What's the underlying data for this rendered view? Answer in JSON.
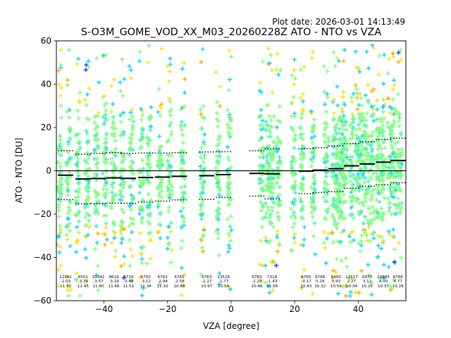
{
  "chart_data": {
    "type": "scatter",
    "plot_date": "Plot date: 2026-03-01 14:13:49",
    "title": "S-O3M_GOME_VOD_XX_M03_20260228Z ATO - NTO vs VZA",
    "xlabel": "VZA [degree]",
    "ylabel": "ATO - NTO [DU]",
    "xlim": [
      -55,
      55
    ],
    "ylim": [
      -60,
      60
    ],
    "xticks": [
      -40,
      -20,
      0,
      20,
      40
    ],
    "xtick_labels": [
      "−40",
      "−20",
      "0",
      "20",
      "40"
    ],
    "yticks": [
      -60,
      -40,
      -20,
      0,
      20,
      40,
      60
    ],
    "ytick_labels": [
      "−60",
      "−40",
      "−20",
      "0",
      "20",
      "40",
      "60"
    ],
    "zero_line": 0,
    "point_colors": {
      "dense": "#80ff7a",
      "mid1": "#45f0c8",
      "mid2": "#18d8f5",
      "outer": "#ffe21a",
      "far": "#ffb300",
      "rare": "#1a4dff"
    },
    "bins": [
      {
        "x": -52.1,
        "n": "12392",
        "mean": "-2.03",
        "std": "11.32",
        "bmean": -2.03,
        "bstd": 11.32
      },
      {
        "x": -46.6,
        "n": "6551",
        "mean": "-3.79",
        "std": "11.45",
        "bmean": -3.79,
        "bstd": 11.45
      },
      {
        "x": -41.8,
        "n": "10341",
        "mean": "-3.57",
        "std": "11.60",
        "bmean": -3.57,
        "bstd": 11.6
      },
      {
        "x": -36.9,
        "n": "9619",
        "mean": "-3.29",
        "std": "11.66",
        "bmean": -3.29,
        "bstd": 11.66
      },
      {
        "x": -32.3,
        "n": "6729",
        "mean": "-3.48",
        "std": "11.52",
        "bmean": -3.48,
        "bstd": 11.52
      },
      {
        "x": -26.9,
        "n": "6750",
        "mean": "-3.12",
        "std": "11.34",
        "bmean": -3.12,
        "bstd": 11.34
      },
      {
        "x": -21.6,
        "n": "6763",
        "mean": "-2.94",
        "std": "11.10",
        "bmean": -2.94,
        "bstd": 11.1
      },
      {
        "x": -16.3,
        "n": "6765",
        "mean": "-2.58",
        "std": "10.88",
        "bmean": -2.58,
        "bstd": 10.88
      },
      {
        "x": -7.7,
        "n": "6763",
        "mean": "-2.27",
        "std": "10.97",
        "bmean": -2.27,
        "bstd": 10.97
      },
      {
        "x": -2.4,
        "n": "13528",
        "mean": "-1.77",
        "std": "10.54",
        "bmean": -1.77,
        "bstd": 10.54
      },
      {
        "x": 8.1,
        "n": "6783",
        "mean": "-1.23",
        "std": "10.46",
        "bmean": -1.23,
        "bstd": 10.46
      },
      {
        "x": 12.9,
        "n": "7318",
        "mean": "-1.43",
        "std": "11.56",
        "bmean": -1.43,
        "bstd": 11.56
      },
      {
        "x": 23.6,
        "n": "6765",
        "mean": "-0.17",
        "std": "10.43",
        "bmean": -0.17,
        "bstd": 10.43
      },
      {
        "x": 28.0,
        "n": "6766",
        "mean": "0.29",
        "std": "10.32",
        "bmean": 0.29,
        "bstd": 10.32
      },
      {
        "x": 33.0,
        "n": "8490",
        "mean": "0.93",
        "std": "10.59",
        "bmean": 0.93,
        "bstd": 10.59
      },
      {
        "x": 37.9,
        "n": "12517",
        "mean": "2.27",
        "std": "10.34",
        "bmean": 2.27,
        "bstd": 10.34
      },
      {
        "x": 42.8,
        "n": "6979",
        "mean": "3.12",
        "std": "10.25",
        "bmean": 3.12,
        "bstd": 10.25
      },
      {
        "x": 47.9,
        "n": "13885",
        "mean": "4.00",
        "std": "10.37",
        "bmean": 4.0,
        "bstd": 10.37
      },
      {
        "x": 52.5,
        "n": "6766",
        "mean": "4.77",
        "std": "10.29",
        "bmean": 4.77,
        "bstd": 10.29
      }
    ],
    "scan_columns": [
      -54.0,
      -51.2,
      -48.2,
      -45.3,
      -42.3,
      -39.7,
      -37.0,
      -34.3,
      -31.4,
      -28.2,
      -25.8,
      -22.4,
      -19.3,
      -15.2,
      -9.0,
      -4.1,
      -0.5,
      9.6,
      11.4,
      12.8,
      14.9,
      19.6,
      22.4,
      25.8,
      29.9,
      32.4,
      33.4,
      34.8,
      35.8,
      37.9,
      39.8,
      41.2,
      42.7,
      44.4,
      46.3,
      47.8,
      49.9,
      51.4,
      53.1
    ]
  }
}
